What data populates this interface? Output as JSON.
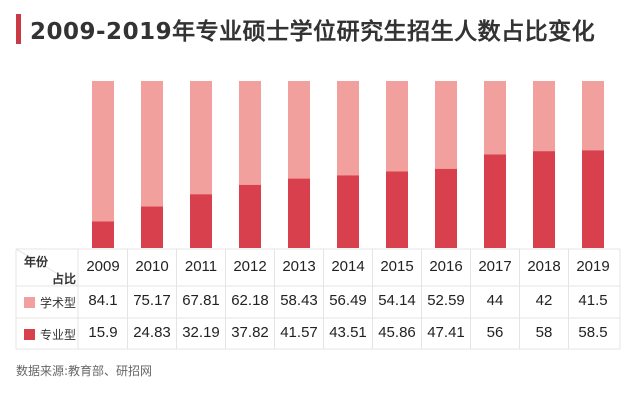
{
  "title": "2009-2019年专业硕士学位研究生招生人数占比变化",
  "table": {
    "corner_top": "年份",
    "corner_bottom": "占比",
    "academic_label": "学术型",
    "professional_label": "专业型"
  },
  "source": "数据来源:教育部、研招网",
  "colors": {
    "accent": "#c93a45",
    "academic": "#f2a09d",
    "professional": "#d9404d",
    "grid": "#e4e4e4"
  },
  "chart_data": {
    "type": "bar",
    "stacked": true,
    "title": "2009-2019年专业硕士学位研究生招生人数占比变化",
    "categories": [
      "2009",
      "2010",
      "2011",
      "2012",
      "2013",
      "2014",
      "2015",
      "2016",
      "2017",
      "2018",
      "2019"
    ],
    "series": [
      {
        "name": "学术型",
        "values": [
          84.1,
          75.17,
          67.81,
          62.18,
          58.43,
          56.49,
          54.14,
          52.59,
          44,
          42,
          41.5
        ]
      },
      {
        "name": "专业型",
        "values": [
          15.9,
          24.83,
          32.19,
          37.82,
          41.57,
          43.51,
          45.86,
          47.41,
          56,
          58,
          58.5
        ]
      }
    ],
    "ylim": [
      0,
      100
    ],
    "legend": "table-bottom"
  }
}
